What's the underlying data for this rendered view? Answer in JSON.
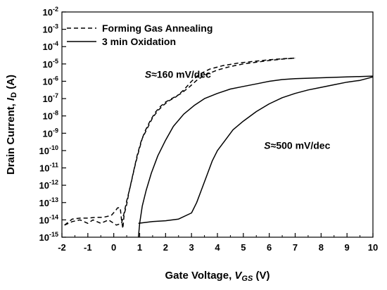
{
  "chart_data": {
    "type": "line",
    "title": "",
    "xlabel": {
      "prefix": "Gate Voltage, ",
      "var": "V",
      "sub": "GS",
      "suffix": " (V)"
    },
    "ylabel": {
      "prefix": "Drain Current, ",
      "var": "I",
      "sub": "D",
      "suffix": " (A)"
    },
    "xlim": [
      -2,
      10
    ],
    "ylim_exponent": [
      -15,
      -2
    ],
    "yscale": "log",
    "x_ticks": [
      "-2",
      "-1",
      "0",
      "1",
      "2",
      "3",
      "4",
      "5",
      "6",
      "7",
      "8",
      "9",
      "10"
    ],
    "y_ticks": [
      {
        "base": "10",
        "exp": "-2"
      },
      {
        "base": "10",
        "exp": "-3"
      },
      {
        "base": "10",
        "exp": "-4"
      },
      {
        "base": "10",
        "exp": "-5"
      },
      {
        "base": "10",
        "exp": "-6"
      },
      {
        "base": "10",
        "exp": "-7"
      },
      {
        "base": "10",
        "exp": "-8"
      },
      {
        "base": "10",
        "exp": "-9"
      },
      {
        "base": "10",
        "exp": "-10"
      },
      {
        "base": "10",
        "exp": "-11"
      },
      {
        "base": "10",
        "exp": "-12"
      },
      {
        "base": "10",
        "exp": "-13"
      },
      {
        "base": "10",
        "exp": "-14"
      },
      {
        "base": "10",
        "exp": "-15"
      }
    ],
    "legend_position": "top-left",
    "series": [
      {
        "name": "Forming Gas Annealing",
        "style": "dashed",
        "curves": [
          [
            [
              -1.9,
              -14.3
            ],
            [
              -1.6,
              -13.95
            ],
            [
              -1.3,
              -13.9
            ],
            [
              -1.0,
              -13.9
            ],
            [
              -0.7,
              -13.85
            ],
            [
              -0.4,
              -13.85
            ],
            [
              -0.1,
              -13.75
            ],
            [
              0.05,
              -13.5
            ],
            [
              0.15,
              -13.3
            ],
            [
              0.25,
              -13.3
            ],
            [
              0.3,
              -14.0
            ],
            [
              0.35,
              -14.5
            ],
            [
              0.4,
              -13.7
            ],
            [
              0.5,
              -13.1
            ],
            [
              0.6,
              -12.3
            ],
            [
              0.75,
              -11.3
            ],
            [
              0.9,
              -10.3
            ],
            [
              1.05,
              -9.5
            ],
            [
              1.2,
              -8.9
            ],
            [
              1.4,
              -8.3
            ],
            [
              1.6,
              -7.8
            ],
            [
              1.8,
              -7.45
            ],
            [
              2.0,
              -7.2
            ],
            [
              2.3,
              -6.95
            ],
            [
              2.6,
              -6.7
            ],
            [
              2.9,
              -6.35
            ],
            [
              3.2,
              -5.95
            ],
            [
              3.5,
              -5.65
            ],
            [
              4.0,
              -5.35
            ],
            [
              4.5,
              -5.15
            ],
            [
              5.0,
              -5.0
            ],
            [
              5.5,
              -4.9
            ],
            [
              6.0,
              -4.8
            ],
            [
              6.5,
              -4.72
            ],
            [
              7.0,
              -4.66
            ]
          ],
          [
            [
              -1.9,
              -14.3
            ],
            [
              -1.6,
              -14.1
            ],
            [
              -1.3,
              -14.0
            ],
            [
              -1.0,
              -14.2
            ],
            [
              -0.8,
              -14.0
            ],
            [
              -0.5,
              -14.2
            ],
            [
              -0.2,
              -14.0
            ],
            [
              0.1,
              -14.3
            ],
            [
              0.3,
              -14.2
            ],
            [
              0.4,
              -13.6
            ],
            [
              0.5,
              -12.9
            ],
            [
              0.65,
              -12.0
            ],
            [
              0.8,
              -11.0
            ],
            [
              0.95,
              -10.1
            ],
            [
              1.1,
              -9.3
            ],
            [
              1.3,
              -8.7
            ],
            [
              1.5,
              -8.1
            ],
            [
              1.7,
              -7.7
            ],
            [
              1.9,
              -7.4
            ],
            [
              2.1,
              -7.15
            ],
            [
              2.4,
              -6.9
            ],
            [
              2.7,
              -6.5
            ],
            [
              3.0,
              -6.0
            ],
            [
              3.3,
              -5.6
            ],
            [
              3.7,
              -5.3
            ],
            [
              4.2,
              -5.1
            ],
            [
              4.8,
              -4.95
            ],
            [
              5.4,
              -4.85
            ],
            [
              6.0,
              -4.76
            ],
            [
              6.5,
              -4.7
            ],
            [
              7.0,
              -4.66
            ]
          ]
        ]
      },
      {
        "name": "3 min Oxidation",
        "style": "solid",
        "curves": [
          [
            [
              0.95,
              -15.0
            ],
            [
              1.0,
              -14.2
            ],
            [
              1.1,
              -13.2
            ],
            [
              1.25,
              -12.3
            ],
            [
              1.45,
              -11.3
            ],
            [
              1.7,
              -10.3
            ],
            [
              2.0,
              -9.4
            ],
            [
              2.3,
              -8.6
            ],
            [
              2.7,
              -7.9
            ],
            [
              3.1,
              -7.4
            ],
            [
              3.5,
              -7.0
            ],
            [
              4.0,
              -6.7
            ],
            [
              4.5,
              -6.45
            ],
            [
              5.0,
              -6.3
            ],
            [
              5.5,
              -6.15
            ],
            [
              6.0,
              -6.0
            ],
            [
              6.5,
              -5.9
            ],
            [
              7.0,
              -5.85
            ],
            [
              8.0,
              -5.8
            ],
            [
              9.0,
              -5.75
            ],
            [
              10.0,
              -5.7
            ]
          ],
          [
            [
              0.95,
              -14.2
            ],
            [
              1.5,
              -14.1
            ],
            [
              2.0,
              -14.05
            ],
            [
              2.5,
              -13.95
            ],
            [
              3.0,
              -13.6
            ],
            [
              3.2,
              -13.0
            ],
            [
              3.4,
              -12.2
            ],
            [
              3.6,
              -11.4
            ],
            [
              3.8,
              -10.6
            ],
            [
              4.0,
              -10.0
            ],
            [
              4.3,
              -9.4
            ],
            [
              4.6,
              -8.8
            ],
            [
              5.0,
              -8.3
            ],
            [
              5.5,
              -7.75
            ],
            [
              6.0,
              -7.3
            ],
            [
              6.5,
              -6.95
            ],
            [
              7.0,
              -6.7
            ],
            [
              7.5,
              -6.5
            ],
            [
              8.0,
              -6.35
            ],
            [
              8.5,
              -6.2
            ],
            [
              9.0,
              -6.05
            ],
            [
              9.5,
              -5.95
            ],
            [
              10.0,
              -5.75
            ]
          ]
        ]
      }
    ],
    "annotations": [
      {
        "italic": "S",
        "text": "≈160 mV/dec",
        "x": 1.2,
        "y": -5.8
      },
      {
        "italic": "S",
        "text": "≈500 mV/dec",
        "x": 5.8,
        "y": -9.9
      }
    ]
  }
}
